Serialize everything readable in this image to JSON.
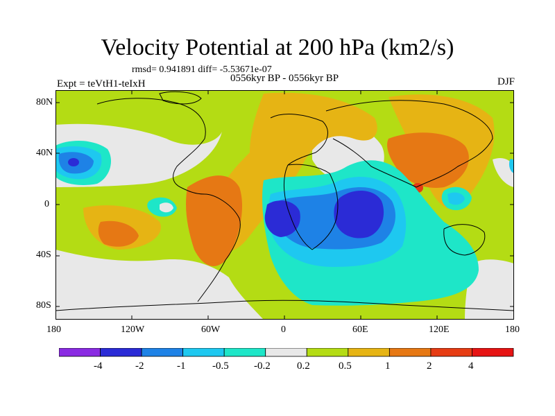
{
  "title": "Velocity Potential at 200 hPa (km2/s)",
  "stats": "rmsd= 0.941891 diff= -5.53671e-07",
  "period": "0556kyr BP - 0556kyr BP",
  "expt": "Expt = teVtH1-teIxH",
  "season": "DJF",
  "lat_labels": [
    "80N",
    "40N",
    "0",
    "40S",
    "80S"
  ],
  "lon_labels": [
    "180",
    "120W",
    "60W",
    "0",
    "60E",
    "120E",
    "180"
  ],
  "colorbar": {
    "labels": [
      "-4",
      "-2",
      "-1",
      "-0.5",
      "-0.2",
      "0.2",
      "0.5",
      "1",
      "2",
      "4"
    ],
    "colors": [
      "#8a2be2",
      "#2b2bd6",
      "#1e82e6",
      "#1ec8f0",
      "#1ee6c8",
      "#e8e8e8",
      "#b4dc14",
      "#e6b414",
      "#e67814",
      "#e63c14",
      "#e61414"
    ]
  }
}
